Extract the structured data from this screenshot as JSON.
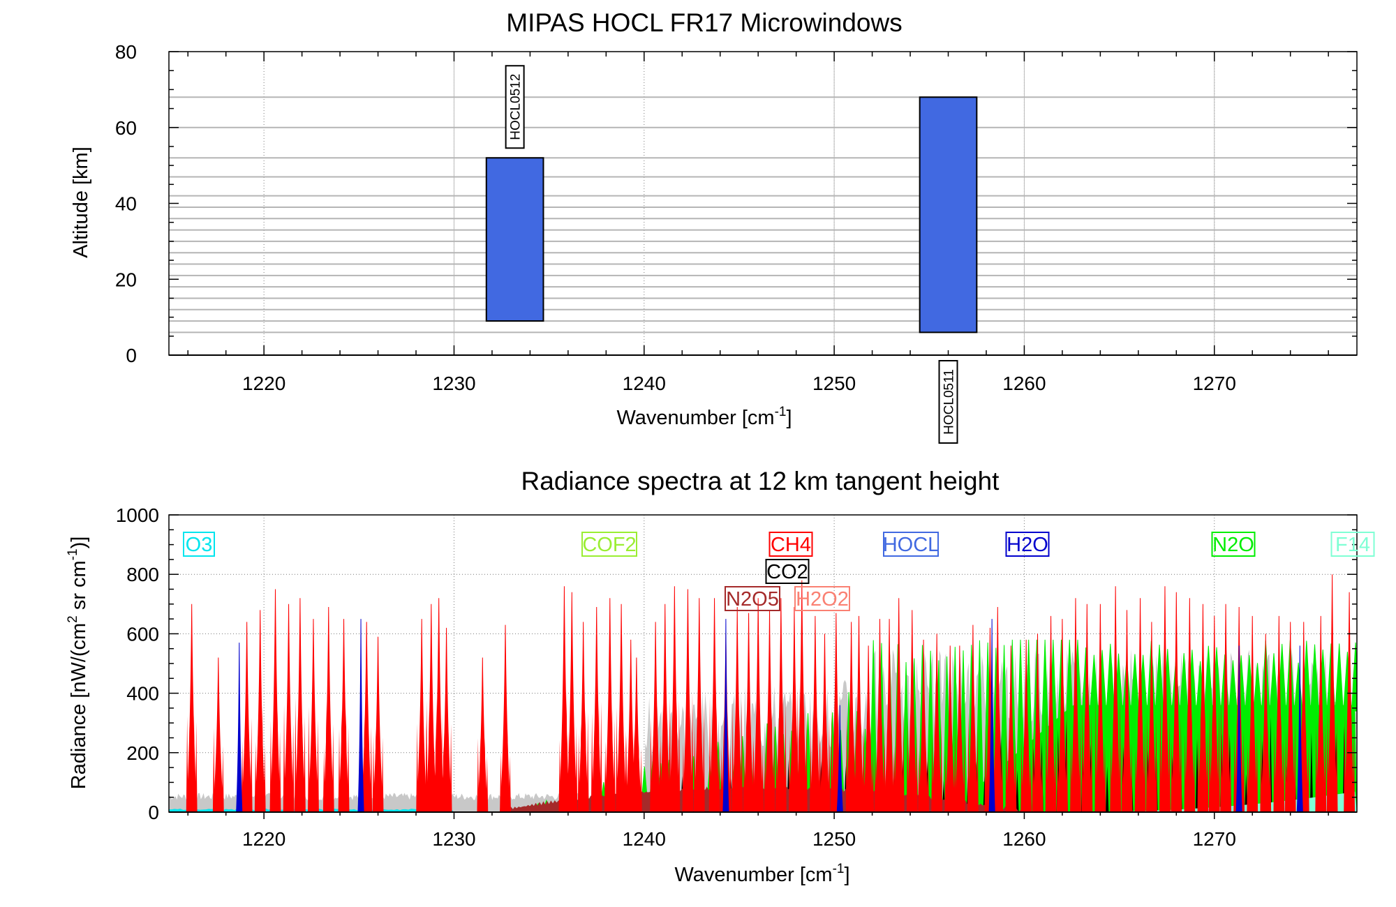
{
  "chart_data": [
    {
      "type": "bar",
      "title": "MIPAS HOCL FR17 Microwindows",
      "xlabel": "Wavenumber [cm",
      "xlabel_sup": "-1",
      "xlabel_close": "]",
      "ylabel": "Altitude [km]",
      "xlim": [
        1215,
        1277.5
      ],
      "ylim": [
        0,
        80
      ],
      "xticks": [
        1220,
        1230,
        1240,
        1250,
        1260,
        1270
      ],
      "yticks": [
        0,
        20,
        40,
        60,
        80
      ],
      "xtick_labels": [
        "1220",
        "1230",
        "1240",
        "1250",
        "1260",
        "1270"
      ],
      "ytick_labels": [
        "0",
        "20",
        "40",
        "60",
        "80"
      ],
      "grid": true,
      "altitude_levels": [
        6,
        9,
        12,
        15,
        18,
        21,
        24,
        27,
        30,
        33,
        36,
        39,
        42,
        47,
        52,
        60,
        68
      ],
      "bar_color": "#4169e1",
      "microwindows": [
        {
          "name": "HOCL0512",
          "x0": 1231.7,
          "x1": 1234.7,
          "alt_min": 9,
          "alt_max": 52,
          "label_position": "top"
        },
        {
          "name": "HOCL0511",
          "x0": 1254.5,
          "x1": 1257.5,
          "alt_min": 6,
          "alt_max": 68,
          "label_position": "bottom"
        }
      ]
    },
    {
      "type": "area",
      "title": "Radiance spectra at 12 km tangent height",
      "xlabel": "Wavenumber [cm",
      "xlabel_sup": "-1",
      "xlabel_close": "]",
      "ylabel_part1": "Radiance [nW/(cm",
      "ylabel_sup1": "2",
      "ylabel_part2": " sr cm",
      "ylabel_sup2": "-1",
      "ylabel_part3": ")]",
      "xlim": [
        1215,
        1277.5
      ],
      "ylim": [
        0,
        1000
      ],
      "xticks": [
        1220,
        1230,
        1240,
        1250,
        1260,
        1270
      ],
      "yticks": [
        0,
        200,
        400,
        600,
        800,
        1000
      ],
      "xtick_labels": [
        "1220",
        "1230",
        "1240",
        "1250",
        "1260",
        "1270"
      ],
      "ytick_labels": [
        "0",
        "200",
        "400",
        "600",
        "800",
        "1000"
      ],
      "grid": true,
      "legend": [
        {
          "label": "O3",
          "color": "#00e5ee"
        },
        {
          "label": "COF2",
          "color": "#9aee32"
        },
        {
          "label": "CH4",
          "color": "#ff0000"
        },
        {
          "label": "CO2",
          "color": "#000000"
        },
        {
          "label": "N2O5",
          "color": "#a52a2a"
        },
        {
          "label": "H2O2",
          "color": "#fa8072"
        },
        {
          "label": "HOCL",
          "color": "#4169e1"
        },
        {
          "label": "H2O",
          "color": "#0000cd"
        },
        {
          "label": "N2O",
          "color": "#00ee00"
        },
        {
          "label": "F14",
          "color": "#7fffd4"
        }
      ],
      "series": [
        {
          "name": "CH4",
          "color": "#ff0000",
          "peaks": [
            [
              1216.2,
              700
            ],
            [
              1217.6,
              520
            ],
            [
              1219.1,
              640
            ],
            [
              1219.8,
              680
            ],
            [
              1220.6,
              750
            ],
            [
              1221.3,
              700
            ],
            [
              1221.9,
              720
            ],
            [
              1222.6,
              650
            ],
            [
              1223.4,
              690
            ],
            [
              1224.2,
              650
            ],
            [
              1225.4,
              640
            ],
            [
              1226.0,
              590
            ],
            [
              1228.3,
              650
            ],
            [
              1228.8,
              700
            ],
            [
              1229.2,
              720
            ],
            [
              1229.6,
              620
            ],
            [
              1231.5,
              520
            ],
            [
              1232.7,
              630
            ],
            [
              1235.8,
              760
            ],
            [
              1236.2,
              740
            ],
            [
              1236.8,
              640
            ],
            [
              1237.5,
              690
            ],
            [
              1238.2,
              720
            ],
            [
              1238.8,
              700
            ],
            [
              1239.3,
              580
            ],
            [
              1239.6,
              520
            ],
            [
              1240.6,
              640
            ],
            [
              1241.1,
              700
            ],
            [
              1241.6,
              760
            ],
            [
              1242.3,
              750
            ],
            [
              1242.9,
              720
            ],
            [
              1243.7,
              720
            ],
            [
              1244.3,
              600
            ],
            [
              1244.9,
              690
            ],
            [
              1245.5,
              670
            ],
            [
              1246.0,
              720
            ],
            [
              1246.6,
              680
            ],
            [
              1247.2,
              720
            ],
            [
              1247.9,
              690
            ],
            [
              1248.3,
              780
            ],
            [
              1249.0,
              660
            ],
            [
              1249.5,
              600
            ],
            [
              1250.1,
              670
            ],
            [
              1250.9,
              640
            ],
            [
              1251.3,
              660
            ],
            [
              1251.8,
              560
            ],
            [
              1252.4,
              650
            ],
            [
              1252.9,
              650
            ],
            [
              1253.4,
              720
            ],
            [
              1254.1,
              680
            ],
            [
              1254.7,
              580
            ],
            [
              1255.4,
              600
            ],
            [
              1256.1,
              560
            ],
            [
              1256.6,
              560
            ],
            [
              1257.3,
              630
            ],
            [
              1258.2,
              620
            ],
            [
              1258.6,
              690
            ],
            [
              1259.3,
              560
            ],
            [
              1260.1,
              580
            ],
            [
              1260.7,
              600
            ],
            [
              1261.4,
              660
            ],
            [
              1262.0,
              650
            ],
            [
              1262.7,
              720
            ],
            [
              1263.3,
              700
            ],
            [
              1264.0,
              700
            ],
            [
              1264.8,
              760
            ],
            [
              1265.4,
              680
            ],
            [
              1266.1,
              720
            ],
            [
              1266.7,
              640
            ],
            [
              1267.4,
              760
            ],
            [
              1268.0,
              740
            ],
            [
              1268.7,
              720
            ],
            [
              1269.4,
              700
            ],
            [
              1270.0,
              660
            ],
            [
              1270.6,
              700
            ],
            [
              1271.3,
              690
            ],
            [
              1272.0,
              660
            ],
            [
              1272.7,
              600
            ],
            [
              1273.4,
              660
            ],
            [
              1274.0,
              640
            ],
            [
              1274.7,
              640
            ],
            [
              1275.6,
              660
            ],
            [
              1276.2,
              800
            ],
            [
              1277.1,
              740
            ]
          ]
        },
        {
          "name": "H2O",
          "color": "#0000cd",
          "peaks": [
            [
              1218.7,
              570
            ],
            [
              1225.1,
              650
            ],
            [
              1244.3,
              650
            ],
            [
              1250.3,
              360
            ],
            [
              1258.3,
              650
            ],
            [
              1271.3,
              560
            ],
            [
              1274.5,
              560
            ]
          ]
        },
        {
          "name": "N2O",
          "color": "#00ee00",
          "band_start": 1234,
          "band_peak_start": 1252,
          "band_max": 560,
          "line_spacing": 0.43
        },
        {
          "name": "N2O5",
          "color": "#a52a2a",
          "band_start": 1233,
          "band_end": 1261,
          "band_center": 1246,
          "band_max": 80
        },
        {
          "name": "F14",
          "color": "#7fffd4",
          "band_start": 1262,
          "band_end": 1277.5,
          "band_max": 70
        },
        {
          "name": "O3",
          "color": "#00e5ee",
          "band_start": 1215,
          "band_end": 1230,
          "band_max": 12
        }
      ]
    }
  ]
}
